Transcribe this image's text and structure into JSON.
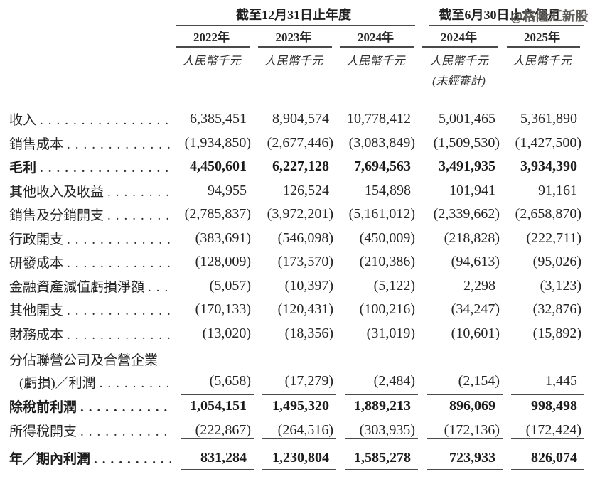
{
  "watermark": {
    "text": "@格隆汇新股"
  },
  "header": {
    "group1": {
      "title": "截至12月31日止年度",
      "columns": [
        "2022年",
        "2023年",
        "2024年"
      ]
    },
    "group2": {
      "title": "截至6月30日止六個月",
      "columns": [
        "2024年",
        "2025年"
      ]
    },
    "unit_label": "人民幣千元",
    "unaudited_note": "(未經審計)"
  },
  "leader_dots": "..............................",
  "rows": [
    {
      "label": "收入",
      "values": [
        "6,385,451",
        "8,904,574",
        "10,778,412",
        "5,001,465",
        "5,361,890"
      ]
    },
    {
      "label": "銷售成本",
      "values": [
        "(1,934,850)",
        "(2,677,446)",
        "(3,083,849)",
        "(1,509,530)",
        "(1,427,500)"
      ]
    },
    {
      "label": "毛利",
      "values": [
        "4,450,601",
        "6,227,128",
        "7,694,563",
        "3,491,935",
        "3,934,390"
      ]
    },
    {
      "label": "其他收入及收益",
      "values": [
        "94,955",
        "126,524",
        "154,898",
        "101,941",
        "91,161"
      ]
    },
    {
      "label": "銷售及分銷開支",
      "values": [
        "(2,785,837)",
        "(3,972,201)",
        "(5,161,012)",
        "(2,339,662)",
        "(2,658,870)"
      ]
    },
    {
      "label": "行政開支",
      "values": [
        "(383,691)",
        "(546,098)",
        "(450,009)",
        "(218,828)",
        "(222,711)"
      ]
    },
    {
      "label": "研發成本",
      "values": [
        "(128,009)",
        "(173,570)",
        "(210,386)",
        "(94,613)",
        "(95,026)"
      ]
    },
    {
      "label": "金融資產減值虧損淨額",
      "values": [
        "(5,057)",
        "(10,397)",
        "(5,122)",
        "2,298",
        "(3,123)"
      ]
    },
    {
      "label": "其他開支",
      "values": [
        "(170,133)",
        "(120,431)",
        "(100,216)",
        "(34,247)",
        "(32,876)"
      ]
    },
    {
      "label": "財務成本",
      "values": [
        "(13,020)",
        "(18,356)",
        "(31,019)",
        "(10,601)",
        "(15,892)"
      ]
    },
    {
      "label": "分佔聯營公司及合營企業",
      "label2": "(虧損)／利潤",
      "values": [
        "(5,658)",
        "(17,279)",
        "(2,484)",
        "(2,154)",
        "1,445"
      ]
    },
    {
      "label": "除稅前利潤",
      "values": [
        "1,054,151",
        "1,495,320",
        "1,889,213",
        "896,069",
        "998,498"
      ]
    },
    {
      "label": "所得稅開支",
      "values": [
        "(222,867)",
        "(264,516)",
        "(303,935)",
        "(172,136)",
        "(172,424)"
      ]
    },
    {
      "label": "年／期內利潤",
      "values": [
        "831,284",
        "1,230,804",
        "1,585,278",
        "723,933",
        "826,074"
      ]
    }
  ]
}
